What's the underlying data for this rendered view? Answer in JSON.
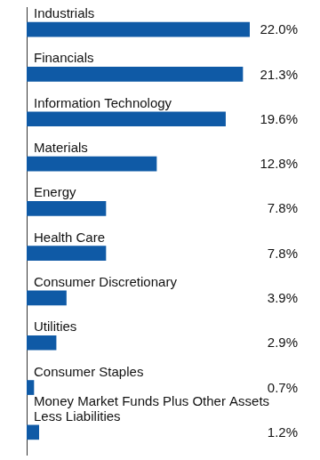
{
  "chart_data": {
    "type": "bar",
    "orientation": "horizontal",
    "categories": [
      "Industrials",
      "Financials",
      "Information Technology",
      "Materials",
      "Energy",
      "Health Care",
      "Consumer Discretionary",
      "Utilities",
      "Consumer Staples",
      "Money Market Funds Plus Other Assets Less Liabilities"
    ],
    "values": [
      22.0,
      21.3,
      19.6,
      12.8,
      7.8,
      7.8,
      3.9,
      2.9,
      0.7,
      1.2
    ],
    "value_labels": [
      "22.0%",
      "21.3%",
      "19.6%",
      "12.8%",
      "7.8%",
      "7.8%",
      "3.9%",
      "2.9%",
      "0.7%",
      "1.2%"
    ],
    "color": "#0f5aa6",
    "xlim": [
      0,
      22
    ],
    "grid": false,
    "data_labels": true,
    "tick_labels": false
  }
}
